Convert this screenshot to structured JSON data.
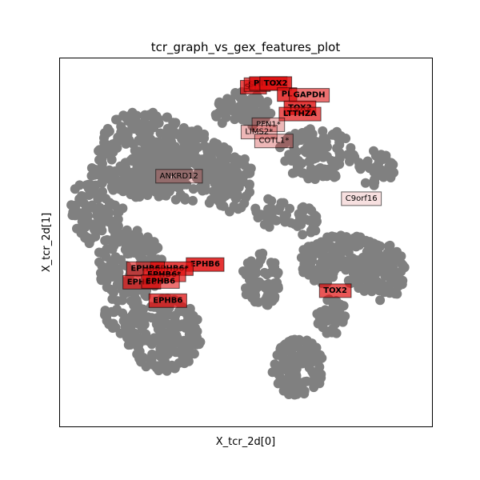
{
  "chart_data": {
    "type": "scatter",
    "title": "tcr_graph_vs_gex_features_plot",
    "xlabel": "X_tcr_2d[0]",
    "ylabel": "X_tcr_2d[1]",
    "xlim": [
      0,
      1
    ],
    "ylim": [
      0,
      1
    ],
    "ticks": "none",
    "grid": false,
    "point_color": "#808080",
    "clusters": [
      {
        "cx": 0.23,
        "cy": 0.74,
        "rx": 0.13,
        "ry": 0.12,
        "n": 260
      },
      {
        "cx": 0.1,
        "cy": 0.6,
        "rx": 0.07,
        "ry": 0.11,
        "n": 110
      },
      {
        "cx": 0.34,
        "cy": 0.71,
        "rx": 0.12,
        "ry": 0.1,
        "n": 160
      },
      {
        "cx": 0.49,
        "cy": 0.86,
        "rx": 0.08,
        "ry": 0.05,
        "n": 70
      },
      {
        "cx": 0.45,
        "cy": 0.67,
        "rx": 0.07,
        "ry": 0.09,
        "n": 90
      },
      {
        "cx": 0.69,
        "cy": 0.74,
        "rx": 0.11,
        "ry": 0.07,
        "n": 120
      },
      {
        "cx": 0.85,
        "cy": 0.7,
        "rx": 0.05,
        "ry": 0.05,
        "n": 40
      },
      {
        "cx": 0.57,
        "cy": 0.58,
        "rx": 0.05,
        "ry": 0.04,
        "n": 30
      },
      {
        "cx": 0.19,
        "cy": 0.44,
        "rx": 0.09,
        "ry": 0.1,
        "n": 140
      },
      {
        "cx": 0.28,
        "cy": 0.25,
        "rx": 0.1,
        "ry": 0.1,
        "n": 170
      },
      {
        "cx": 0.17,
        "cy": 0.31,
        "rx": 0.05,
        "ry": 0.07,
        "n": 50
      },
      {
        "cx": 0.54,
        "cy": 0.4,
        "rx": 0.05,
        "ry": 0.08,
        "n": 70
      },
      {
        "cx": 0.76,
        "cy": 0.45,
        "rx": 0.12,
        "ry": 0.07,
        "n": 170
      },
      {
        "cx": 0.86,
        "cy": 0.42,
        "rx": 0.07,
        "ry": 0.08,
        "n": 90
      },
      {
        "cx": 0.64,
        "cy": 0.16,
        "rx": 0.07,
        "ry": 0.08,
        "n": 110
      },
      {
        "cx": 0.73,
        "cy": 0.3,
        "rx": 0.04,
        "ry": 0.05,
        "n": 40
      },
      {
        "cx": 0.66,
        "cy": 0.56,
        "rx": 0.04,
        "ry": 0.04,
        "n": 25
      }
    ],
    "labels": [
      {
        "text": "SH2",
        "x": 0.52,
        "y": 0.925,
        "alpha": 0.75,
        "bold": true
      },
      {
        "text": "SH2",
        "x": 0.53,
        "y": 0.932,
        "alpha": 0.7,
        "bold": true
      },
      {
        "text": "PTOX2",
        "x": 0.56,
        "y": 0.935,
        "alpha": 0.85,
        "bold": true
      },
      {
        "text": "TOX2",
        "x": 0.58,
        "y": 0.935,
        "alpha": 0.85,
        "bold": true
      },
      {
        "text": "PL",
        "x": 0.61,
        "y": 0.905,
        "alpha": 0.8,
        "bold": true
      },
      {
        "text": "GAPDH",
        "x": 0.67,
        "y": 0.903,
        "alpha": 0.6,
        "bold": true
      },
      {
        "text": "TOX2",
        "x": 0.645,
        "y": 0.869,
        "alpha": 0.8,
        "bold": true
      },
      {
        "text": "LTTHZA",
        "x": 0.645,
        "y": 0.852,
        "alpha": 0.7,
        "bold": true
      },
      {
        "text": "PFN1*",
        "x": 0.56,
        "y": 0.823,
        "alpha": 0.35,
        "bold": false
      },
      {
        "text": "LIMS2*",
        "x": 0.535,
        "y": 0.803,
        "alpha": 0.35,
        "bold": false
      },
      {
        "text": "COTL1*",
        "x": 0.575,
        "y": 0.779,
        "alpha": 0.35,
        "bold": false
      },
      {
        "text": "ANKRD12",
        "x": 0.32,
        "y": 0.683,
        "alpha": 0.25,
        "bold": false
      },
      {
        "text": "C9orf16",
        "x": 0.81,
        "y": 0.622,
        "alpha": 0.15,
        "bold": false
      },
      {
        "text": "EPHB6",
        "x": 0.39,
        "y": 0.443,
        "alpha": 0.85,
        "bold": true
      },
      {
        "text": "EPHB6*",
        "x": 0.3,
        "y": 0.432,
        "alpha": 0.8,
        "bold": true
      },
      {
        "text": "EPHB6",
        "x": 0.23,
        "y": 0.432,
        "alpha": 0.6,
        "bold": true
      },
      {
        "text": "EPHB6*",
        "x": 0.28,
        "y": 0.415,
        "alpha": 0.7,
        "bold": true
      },
      {
        "text": "EPHB6",
        "x": 0.22,
        "y": 0.395,
        "alpha": 0.7,
        "bold": true
      },
      {
        "text": "EPHB6",
        "x": 0.27,
        "y": 0.397,
        "alpha": 0.6,
        "bold": true
      },
      {
        "text": "TOX2",
        "x": 0.74,
        "y": 0.372,
        "alpha": 0.7,
        "bold": true
      },
      {
        "text": "EPHB6",
        "x": 0.29,
        "y": 0.345,
        "alpha": 0.75,
        "bold": true
      }
    ]
  }
}
